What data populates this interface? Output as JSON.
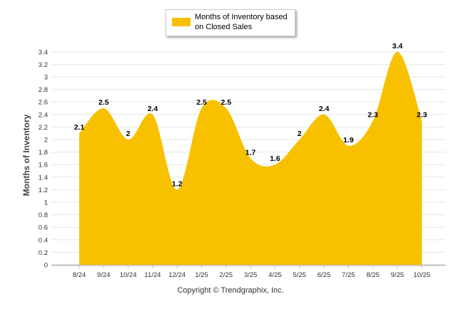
{
  "legend": {
    "label": "Months of Inventory based on Closed Sales",
    "color": "#f7c100"
  },
  "copyright": "Copyright © Trendgraphix, Inc.",
  "chart_data": {
    "type": "area",
    "title": "",
    "xlabel": "",
    "ylabel": "Months of Inventory",
    "categories": [
      "8/24",
      "9/24",
      "10/24",
      "11/24",
      "12/24",
      "1/25",
      "2/25",
      "3/25",
      "4/25",
      "5/25",
      "6/25",
      "7/25",
      "8/25",
      "9/25",
      "10/25"
    ],
    "series": [
      {
        "name": "Months of Inventory based on Closed Sales",
        "values": [
          2.1,
          2.5,
          2,
          2.4,
          1.2,
          2.5,
          2.5,
          1.7,
          1.6,
          2,
          2.4,
          1.9,
          2.3,
          3.4,
          2.3
        ]
      }
    ],
    "data_labels": [
      "2.1",
      "2.5",
      "2",
      "2.4",
      "1.2",
      "2.5",
      "2.5",
      "1.7",
      "1.6",
      "2",
      "2.4",
      "1.9",
      "2.3",
      "3.4",
      "2.3"
    ],
    "yticks": [
      "0",
      "0.2",
      "0.4",
      "0.6",
      "0.8",
      "1",
      "1.2",
      "1.4",
      "1.6",
      "1.8",
      "2",
      "2.2",
      "2.4",
      "2.6",
      "2.8",
      "3",
      "3.2",
      "3.4"
    ],
    "ylim": [
      0,
      3.4
    ],
    "grid": true,
    "color": "#f7c100"
  }
}
